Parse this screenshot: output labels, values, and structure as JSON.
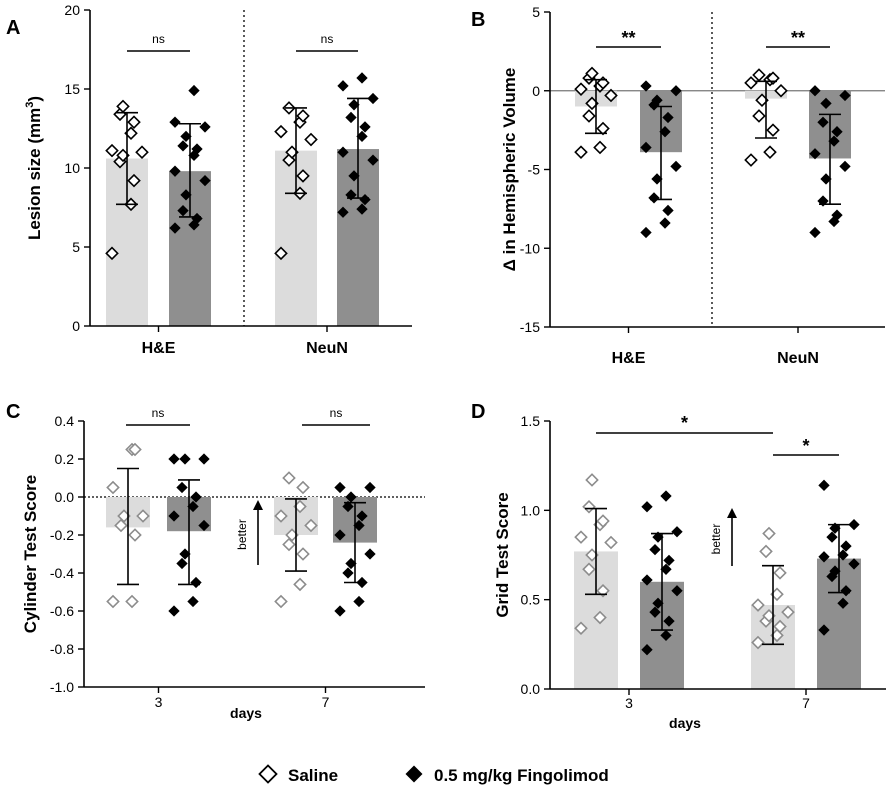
{
  "legend": {
    "saline_label": "Saline",
    "fingolimod_label": "0.5 mg/kg Fingolimod"
  },
  "colors": {
    "saline_bar": "#dcdcdc",
    "saline_marker_stroke": "#000000",
    "saline_marker_stroke_light": "#8c8c8c",
    "fingolimod_bar": "#8f8f8f",
    "fingolimod_marker": "#000000"
  },
  "chart_data": [
    {
      "id": "A",
      "panel_label": "A",
      "type": "bar",
      "ylabel": "Lesion size (mm",
      "ylabel_sup": "3",
      "ylabel_end": ")",
      "ylim": [
        0,
        20
      ],
      "yticks": [
        0,
        5,
        10,
        15,
        20
      ],
      "ytick_labels": [
        "0",
        "5",
        "10",
        "15",
        "20"
      ],
      "categories": [
        "H&E",
        "NeuN"
      ],
      "separator": "dotted",
      "series": [
        {
          "name": "Saline",
          "means": [
            10.6,
            11.1
          ],
          "errors": [
            [
              7.7,
              13.5
            ],
            [
              8.4,
              13.8
            ]
          ],
          "points": [
            [
              4.6,
              7.7,
              9.2,
              10.4,
              10.8,
              11.0,
              11.1,
              12.2,
              12.9,
              13.4,
              13.9
            ],
            [
              4.6,
              8.4,
              9.5,
              10.5,
              11.0,
              11.8,
              12.3,
              12.9,
              13.3,
              13.8
            ]
          ]
        },
        {
          "name": "0.5 mg/kg Fingolimod",
          "means": [
            9.8,
            11.2
          ],
          "errors": [
            [
              6.9,
              12.8
            ],
            [
              8.1,
              14.4
            ]
          ],
          "points": [
            [
              6.2,
              6.4,
              6.8,
              7.3,
              8.3,
              9.2,
              9.8,
              10.8,
              11.2,
              11.4,
              12.0,
              12.6,
              12.9,
              14.9
            ],
            [
              7.2,
              7.4,
              8.0,
              8.3,
              9.5,
              10.5,
              11.0,
              12.0,
              12.6,
              13.2,
              14.0,
              14.4,
              15.2,
              15.7
            ]
          ]
        }
      ],
      "significance": [
        {
          "label": "ns",
          "between": "H&E"
        },
        {
          "label": "ns",
          "between": "NeuN"
        }
      ]
    },
    {
      "id": "B",
      "panel_label": "B",
      "type": "bar",
      "ylabel": "Δ in Hemispheric Volume",
      "ylim": [
        -15,
        5
      ],
      "yticks": [
        -15,
        -10,
        -5,
        0,
        5
      ],
      "ytick_labels": [
        "-15",
        "-10",
        "-5",
        "0",
        "5"
      ],
      "zero_line": "solid",
      "categories": [
        "H&E",
        "NeuN"
      ],
      "separator": "dotted",
      "series": [
        {
          "name": "Saline",
          "means": [
            -1.0,
            -0.5
          ],
          "errors": [
            [
              -2.7,
              0.7
            ],
            [
              -3.0,
              0.6
            ]
          ],
          "points": [
            [
              -3.9,
              -3.6,
              -2.4,
              -1.6,
              -0.8,
              -0.3,
              0.1,
              0.3,
              0.5,
              0.8,
              1.1
            ],
            [
              -4.4,
              -3.9,
              -2.5,
              -1.6,
              -0.6,
              0.0,
              0.5,
              0.7,
              0.8,
              1.0
            ]
          ]
        },
        {
          "name": "0.5 mg/kg Fingolimod",
          "means": [
            -3.9,
            -4.3
          ],
          "errors": [
            [
              -6.9,
              -1.0
            ],
            [
              -7.2,
              -1.5
            ]
          ],
          "points": [
            [
              -9.0,
              -8.4,
              -7.6,
              -6.8,
              -5.6,
              -4.8,
              -3.6,
              -2.6,
              -1.7,
              -0.9,
              -0.6,
              0.0,
              0.3
            ],
            [
              -9.0,
              -8.3,
              -7.9,
              -7.0,
              -5.6,
              -4.8,
              -4.0,
              -3.2,
              -2.6,
              -2.0,
              -0.8,
              -0.3,
              0.0
            ]
          ]
        }
      ],
      "significance": [
        {
          "label": "**",
          "between": "H&E"
        },
        {
          "label": "**",
          "between": "NeuN"
        }
      ]
    },
    {
      "id": "C",
      "panel_label": "C",
      "type": "bar",
      "ylabel": "Cylinder Test Score",
      "ylim": [
        -1.0,
        0.4
      ],
      "yticks": [
        -1.0,
        -0.8,
        -0.6,
        -0.4,
        -0.2,
        0.0,
        0.2,
        0.4
      ],
      "ytick_labels": [
        "-1.0",
        "-0.8",
        "-0.6",
        "-0.4",
        "-0.2",
        "0.0",
        "0.2",
        "0.4"
      ],
      "zero_line": "dotted",
      "categories": [
        "3",
        "7"
      ],
      "xlabel": "days",
      "better_label": "better",
      "series": [
        {
          "name": "Saline",
          "means": [
            -0.16,
            -0.2
          ],
          "errors": [
            [
              -0.46,
              0.15
            ],
            [
              -0.39,
              -0.01
            ]
          ],
          "points": [
            [
              -0.55,
              -0.55,
              -0.2,
              -0.15,
              -0.1,
              -0.1,
              0.05,
              0.25,
              0.25
            ],
            [
              -0.55,
              -0.46,
              -0.3,
              -0.25,
              -0.2,
              -0.15,
              -0.1,
              -0.05,
              0.05,
              0.1
            ]
          ]
        },
        {
          "name": "0.5 mg/kg Fingolimod",
          "means": [
            -0.18,
            -0.24
          ],
          "errors": [
            [
              -0.46,
              0.09
            ],
            [
              -0.45,
              -0.03
            ]
          ],
          "points": [
            [
              -0.6,
              -0.55,
              -0.45,
              -0.35,
              -0.3,
              -0.15,
              -0.1,
              -0.05,
              0.0,
              0.05,
              0.2,
              0.2,
              0.2
            ],
            [
              -0.6,
              -0.55,
              -0.45,
              -0.4,
              -0.35,
              -0.3,
              -0.2,
              -0.15,
              -0.1,
              -0.05,
              0.0,
              0.05,
              0.05
            ]
          ]
        }
      ],
      "significance": [
        {
          "label": "ns",
          "between": "3"
        },
        {
          "label": "ns",
          "between": "7"
        }
      ]
    },
    {
      "id": "D",
      "panel_label": "D",
      "type": "bar",
      "ylabel": "Grid Test Score",
      "ylim": [
        0.0,
        1.5
      ],
      "yticks": [
        0.0,
        0.5,
        1.0,
        1.5
      ],
      "ytick_labels": [
        "0.0",
        "0.5",
        "1.0",
        "1.5"
      ],
      "categories": [
        "3",
        "7"
      ],
      "xlabel": "days",
      "better_label": "better",
      "series": [
        {
          "name": "Saline",
          "means": [
            0.77,
            0.47
          ],
          "errors": [
            [
              0.53,
              1.01
            ],
            [
              0.25,
              0.69
            ]
          ],
          "points": [
            [
              0.34,
              0.4,
              0.55,
              0.67,
              0.75,
              0.82,
              0.85,
              0.92,
              0.94,
              1.02,
              1.17
            ],
            [
              0.26,
              0.3,
              0.35,
              0.38,
              0.41,
              0.43,
              0.47,
              0.53,
              0.65,
              0.77,
              0.87
            ]
          ]
        },
        {
          "name": "0.5 mg/kg Fingolimod",
          "means": [
            0.6,
            0.73
          ],
          "errors": [
            [
              0.33,
              0.87
            ],
            [
              0.54,
              0.92
            ]
          ],
          "points": [
            [
              0.22,
              0.3,
              0.38,
              0.43,
              0.48,
              0.55,
              0.61,
              0.67,
              0.72,
              0.78,
              0.85,
              0.88,
              1.02,
              1.08
            ],
            [
              0.33,
              0.48,
              0.55,
              0.63,
              0.66,
              0.7,
              0.74,
              0.75,
              0.8,
              0.85,
              0.9,
              0.92,
              1.14
            ]
          ]
        }
      ],
      "significance": [
        {
          "label": "*",
          "span": "3-saline to 7-saline"
        },
        {
          "label": "*",
          "between": "7"
        }
      ]
    }
  ]
}
